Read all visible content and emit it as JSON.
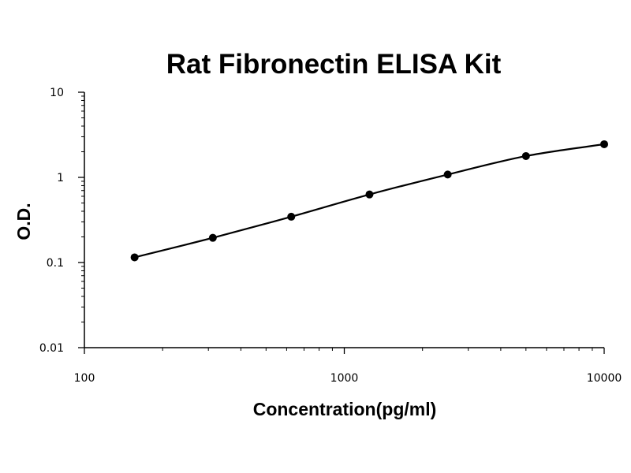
{
  "chart_data": {
    "type": "line",
    "title": "Rat Fibronectin ELISA Kit",
    "xlabel": "Concentration(pg/ml)",
    "ylabel": "O.D.",
    "x_scale": "log",
    "y_scale": "log",
    "xlim": [
      100,
      10000
    ],
    "ylim": [
      0.01,
      10
    ],
    "x_ticks": [
      "100",
      "1000",
      "10000"
    ],
    "y_ticks": [
      "10",
      "1",
      "0.1",
      "0.01"
    ],
    "grid": false,
    "legend": "none",
    "colors": {
      "line": "#000000",
      "marker": "#000000"
    },
    "series": [
      {
        "x": [
          156,
          312,
          625,
          1250,
          2500,
          5000,
          10000
        ],
        "y": [
          0.115,
          0.195,
          0.345,
          0.63,
          1.08,
          1.78,
          2.45
        ]
      }
    ]
  }
}
